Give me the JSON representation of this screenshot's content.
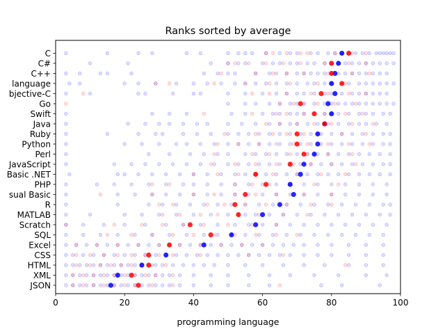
{
  "chart_data": {
    "type": "scatter",
    "title": "Ranks sorted by average",
    "xlabel": "programming language",
    "ylabel": "",
    "xlim": [
      0,
      100
    ],
    "xticks": [
      0,
      20,
      40,
      60,
      80,
      100
    ],
    "grid": false,
    "colors": {
      "blue": "#0000ff",
      "red": "#ff0000"
    },
    "categories": [
      "C",
      "C#",
      "C++",
      "language",
      "bjective-C",
      "Go",
      "Swift",
      "Java",
      "Ruby",
      "Python",
      "Perl",
      "JavaScript",
      "Basic .NET",
      "PHP",
      "sual Basic",
      "R",
      "MATLAB",
      "Scratch",
      "SQL",
      "Excel",
      "CSS",
      "HTML",
      "XML",
      "JSON"
    ],
    "series": [
      {
        "marker": "small faint circles",
        "color": "blue",
        "values": [
          [
            3,
            15,
            24,
            28,
            38,
            42,
            50,
            53,
            55,
            57,
            61,
            65,
            68,
            70,
            74,
            76,
            79,
            81,
            83,
            85,
            87,
            89,
            91,
            93,
            94,
            95,
            96,
            97,
            98
          ],
          [
            10,
            21,
            45,
            50,
            53,
            55,
            60,
            63,
            65,
            68,
            70,
            73,
            75,
            78,
            80,
            82,
            84,
            86,
            88,
            90,
            92,
            94,
            96,
            98
          ],
          [
            3,
            7,
            13,
            15,
            22,
            43,
            47,
            50,
            52,
            58,
            62,
            64,
            67,
            70,
            72,
            74,
            76,
            78,
            80,
            82,
            84,
            86,
            88,
            90,
            92,
            94,
            96
          ],
          [
            4,
            7,
            20,
            24,
            29,
            35,
            40,
            44,
            48,
            52,
            55,
            58,
            61,
            64,
            67,
            70,
            73,
            75,
            78,
            80,
            83,
            85,
            88,
            90,
            92,
            94,
            96,
            98
          ],
          [
            3,
            10,
            24,
            26,
            34,
            40,
            42,
            50,
            55,
            60,
            64,
            67,
            70,
            72,
            75,
            78,
            80,
            83,
            86,
            88,
            90,
            92,
            94,
            96
          ],
          [
            50,
            55,
            58,
            62,
            65,
            68,
            70,
            72,
            75,
            78,
            80,
            82,
            84,
            86,
            88,
            90,
            92,
            94,
            96,
            98
          ],
          [
            3,
            28,
            33,
            38,
            51,
            55,
            60,
            63,
            65,
            68,
            70,
            72,
            75,
            78,
            80,
            82,
            85,
            88,
            90,
            92,
            95,
            97
          ],
          [
            3,
            21,
            26,
            30,
            33,
            37,
            41,
            44,
            50,
            54,
            58,
            62,
            65,
            68,
            70,
            73,
            76,
            79,
            82,
            85,
            88,
            90,
            93,
            96
          ],
          [
            3,
            15,
            24,
            29,
            31,
            37,
            41,
            45,
            50,
            53,
            56,
            59,
            62,
            65,
            68,
            71,
            74,
            77,
            80,
            83,
            86,
            89,
            92,
            95,
            97
          ],
          [
            3,
            20,
            25,
            30,
            35,
            38,
            42,
            46,
            50,
            53,
            56,
            59,
            62,
            65,
            68,
            71,
            74,
            77,
            80,
            83,
            86,
            89,
            92,
            95,
            97
          ],
          [
            3,
            27,
            33,
            39,
            43,
            47,
            50,
            55,
            58,
            61,
            64,
            67,
            70,
            73,
            76,
            79,
            82,
            85,
            88,
            91,
            94,
            97
          ],
          [
            3,
            17,
            22,
            26,
            30,
            34,
            38,
            42,
            46,
            50,
            53,
            56,
            59,
            62,
            65,
            68,
            71,
            74,
            77,
            80,
            83,
            86,
            89,
            92,
            95,
            97
          ],
          [
            4,
            18,
            20,
            24,
            28,
            32,
            36,
            40,
            44,
            48,
            52,
            55,
            58,
            61,
            64,
            67,
            70,
            73,
            76,
            79,
            82,
            85,
            88,
            91,
            94,
            97
          ],
          [
            3,
            12,
            17,
            22,
            27,
            32,
            37,
            40,
            44,
            48,
            52,
            56,
            60,
            64,
            68,
            72,
            76,
            80,
            84,
            88,
            92,
            96
          ],
          [
            3,
            18,
            23,
            28,
            32,
            36,
            40,
            44,
            48,
            52,
            56,
            60,
            64,
            68,
            72,
            76,
            80,
            84,
            88,
            92,
            96
          ],
          [
            3,
            18,
            27,
            31,
            35,
            39,
            43,
            47,
            51,
            55,
            59,
            63,
            67,
            71,
            75,
            79,
            83,
            87,
            91,
            95,
            97
          ],
          [
            3,
            10,
            20,
            25,
            30,
            35,
            40,
            45,
            50,
            55,
            58,
            62,
            66,
            70,
            74,
            78,
            82,
            86,
            90,
            94,
            97
          ],
          [
            3,
            8,
            14,
            20,
            26,
            32,
            37,
            42,
            47,
            52,
            56,
            60,
            64,
            68,
            72,
            76,
            80,
            84,
            88,
            92,
            96
          ],
          [
            3,
            8,
            13,
            18,
            23,
            28,
            33,
            38,
            43,
            47,
            51,
            55,
            59,
            63,
            67,
            71,
            75,
            79,
            83,
            87,
            91,
            95
          ],
          [
            3,
            6,
            9,
            12,
            15,
            18,
            21,
            24,
            27,
            30,
            33,
            36,
            39,
            42,
            45,
            48,
            51,
            54,
            57,
            60,
            63,
            66,
            69,
            72,
            76,
            80,
            85,
            90,
            95
          ],
          [
            3,
            5,
            8,
            11,
            14,
            17,
            20,
            23,
            26,
            29,
            32,
            35,
            38,
            41,
            44,
            47,
            50,
            53,
            56,
            59,
            62,
            65,
            68,
            72,
            76,
            80,
            85,
            90,
            95
          ],
          [
            3,
            5,
            7,
            9,
            11,
            13,
            15,
            17,
            19,
            21,
            23,
            25,
            27,
            29,
            31,
            34,
            37,
            40,
            43,
            46,
            50,
            55,
            60,
            66,
            72,
            78,
            85,
            90,
            95
          ],
          [
            3,
            5,
            7,
            9,
            11,
            13,
            15,
            17,
            19,
            21,
            23,
            25,
            27,
            29,
            31,
            33,
            36,
            40,
            45,
            50,
            56,
            62,
            68,
            75,
            82,
            90,
            96
          ],
          [
            3,
            5,
            7,
            9,
            11,
            13,
            15,
            17,
            19,
            21,
            23,
            25,
            27,
            29,
            31,
            33,
            36,
            40,
            45,
            50,
            56,
            62,
            77,
            83,
            94
          ]
        ]
      },
      {
        "marker": "small faint circles",
        "color": "red",
        "values": [
          [
            61,
            63,
            67,
            71,
            73,
            81,
            86,
            90
          ],
          [
            50,
            52,
            56,
            61,
            66,
            71,
            78,
            85,
            90
          ],
          [
            48,
            58,
            63,
            67,
            72,
            79,
            86,
            91
          ],
          [
            29,
            33,
            46,
            55,
            62,
            68,
            76,
            84
          ],
          [
            8,
            57,
            62,
            67,
            74,
            79,
            85,
            90
          ],
          [
            3,
            65,
            69,
            72,
            76,
            81,
            87
          ],
          [
            43,
            57,
            64,
            67,
            72,
            78,
            84,
            89
          ],
          [
            61,
            65,
            70,
            75,
            80,
            86,
            92
          ],
          [
            49,
            58,
            63,
            67,
            72,
            76,
            83,
            90
          ],
          [
            47,
            53,
            59,
            64,
            69,
            73,
            79,
            85,
            91
          ],
          [
            46,
            57,
            62,
            68,
            73,
            79,
            86
          ],
          [
            45,
            52,
            58,
            64,
            69,
            74,
            80,
            87
          ],
          [
            40,
            47,
            53,
            58,
            63,
            70,
            77,
            84
          ],
          [
            28,
            33,
            52,
            57,
            62,
            68,
            75,
            82
          ],
          [
            13,
            28,
            40,
            46,
            52,
            58,
            64,
            72,
            80
          ],
          [
            30,
            34,
            44,
            49,
            55,
            61,
            67,
            74,
            80
          ],
          [
            31,
            36,
            42,
            47,
            53,
            59,
            66,
            73
          ],
          [
            3,
            17,
            25,
            31,
            37,
            43,
            50,
            57,
            64
          ],
          [
            15,
            22,
            28,
            34,
            40,
            46,
            52,
            58,
            64,
            70
          ],
          [
            6,
            12,
            18,
            24,
            30,
            36,
            42,
            48,
            54,
            60
          ],
          [
            6,
            10,
            14,
            18,
            22,
            26,
            30,
            34,
            42,
            56,
            66
          ],
          [
            6,
            10,
            13,
            16,
            19,
            22,
            25,
            28,
            32,
            84
          ],
          [
            5,
            8,
            11,
            14,
            17,
            20,
            23,
            26,
            29,
            34
          ],
          [
            5,
            8,
            11,
            14,
            17,
            20,
            23,
            28,
            34,
            65
          ]
        ]
      },
      {
        "marker": "large circle (average)",
        "color": "blue",
        "values": [
          83,
          82,
          81,
          80,
          81,
          79,
          80,
          78,
          76,
          76,
          75,
          72,
          71,
          68,
          69,
          65,
          60,
          58,
          51,
          43,
          32,
          25,
          18,
          16
        ]
      },
      {
        "marker": "large circle (average)",
        "color": "red",
        "values": [
          85,
          80,
          80,
          83,
          77,
          71,
          75,
          78,
          70,
          70,
          72,
          68,
          58,
          61,
          55,
          52,
          53,
          39,
          45,
          33,
          27,
          27,
          22,
          24
        ]
      }
    ]
  }
}
